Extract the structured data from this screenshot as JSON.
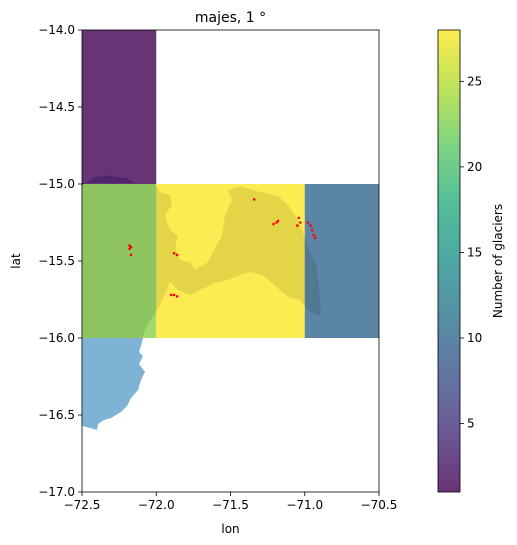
{
  "chart_data": {
    "type": "heatmap",
    "title": "majes, 1 °",
    "xlabel": "lon",
    "ylabel": "lat",
    "xlim": [
      -72.5,
      -70.5
    ],
    "ylim": [
      -17.0,
      -14.0
    ],
    "xticks": [
      -72.5,
      -72.0,
      -71.5,
      -71.0,
      -70.5
    ],
    "xtick_labels": [
      "−72.5",
      "−72.0",
      "−71.5",
      "−71.0",
      "−70.5"
    ],
    "yticks": [
      -17.0,
      -16.5,
      -16.0,
      -15.5,
      -15.0,
      -14.5,
      -14.0
    ],
    "ytick_labels": [
      "−17.0",
      "−16.5",
      "−16.0",
      "−15.5",
      "−15.0",
      "−14.5",
      "−14.0"
    ],
    "cells": [
      {
        "lon_min": -72.5,
        "lon_max": -72.0,
        "lat_min": -15.0,
        "lat_max": -14.0,
        "count": 1
      },
      {
        "lon_min": -72.5,
        "lon_max": -72.0,
        "lat_min": -16.0,
        "lat_max": -15.0,
        "count": 23
      },
      {
        "lon_min": -72.0,
        "lon_max": -71.0,
        "lat_min": -16.0,
        "lat_max": -15.0,
        "count": 28
      },
      {
        "lon_min": -71.0,
        "lon_max": -70.5,
        "lat_min": -16.0,
        "lat_max": -15.0,
        "count": 10
      }
    ],
    "basin_color": "#7fb3d5",
    "glaciers": [
      {
        "lon": -72.18,
        "lat": -15.4
      },
      {
        "lon": -72.17,
        "lat": -15.41
      },
      {
        "lon": -72.18,
        "lat": -15.42
      },
      {
        "lon": -72.17,
        "lat": -15.46
      },
      {
        "lon": -71.88,
        "lat": -15.45
      },
      {
        "lon": -71.86,
        "lat": -15.46
      },
      {
        "lon": -71.9,
        "lat": -15.72
      },
      {
        "lon": -71.88,
        "lat": -15.72
      },
      {
        "lon": -71.86,
        "lat": -15.73
      },
      {
        "lon": -71.34,
        "lat": -15.1
      },
      {
        "lon": -71.21,
        "lat": -15.26
      },
      {
        "lon": -71.19,
        "lat": -15.25
      },
      {
        "lon": -71.18,
        "lat": -15.24
      },
      {
        "lon": -71.04,
        "lat": -15.22
      },
      {
        "lon": -71.03,
        "lat": -15.25
      },
      {
        "lon": -71.05,
        "lat": -15.27
      },
      {
        "lon": -70.98,
        "lat": -15.25
      },
      {
        "lon": -70.96,
        "lat": -15.27
      },
      {
        "lon": -70.95,
        "lat": -15.3
      },
      {
        "lon": -70.94,
        "lat": -15.33
      },
      {
        "lon": -70.93,
        "lat": -15.35
      }
    ],
    "glacier_color": "#ff0000",
    "colorbar": {
      "label": "Number of glaciers",
      "min": 1,
      "max": 28,
      "ticks": [
        5,
        10,
        15,
        20,
        25
      ],
      "tick_labels": [
        "5",
        "10",
        "15",
        "20",
        "25"
      ]
    }
  }
}
